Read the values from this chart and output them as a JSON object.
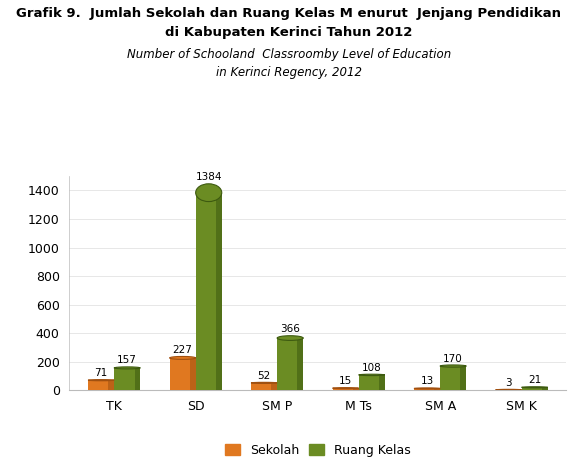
{
  "title_line1": "Grafik 9.  Jumlah Sekolah dan Ruang Kelas M enurut  Jenjang Pendidikan",
  "title_line2": "di Kabupaten Kerinci Tahun 2012",
  "subtitle_line1": "Number of Schooland  Classroomby Level of Education",
  "subtitle_line2": "in Kerinci Regency, 2012",
  "categories": [
    "TK",
    "SD",
    "SM P",
    "M Ts",
    "SM A",
    "SM K"
  ],
  "sekolah": [
    71,
    227,
    52,
    15,
    13,
    3
  ],
  "ruang_kelas": [
    157,
    1384,
    366,
    108,
    170,
    21
  ],
  "bar_color_sekolah": "#E07820",
  "bar_color_ruang": "#6B8C23",
  "bar_color_sekolah_dark": "#A05010",
  "bar_color_ruang_dark": "#3D5A10",
  "ylim": [
    0,
    1500
  ],
  "yticks": [
    0,
    200,
    400,
    600,
    800,
    1000,
    1200,
    1400
  ],
  "legend_sekolah": "Sekolah",
  "legend_ruang": "Ruang Kelas",
  "background_color": "#FFFFFF",
  "bar_width": 0.32
}
